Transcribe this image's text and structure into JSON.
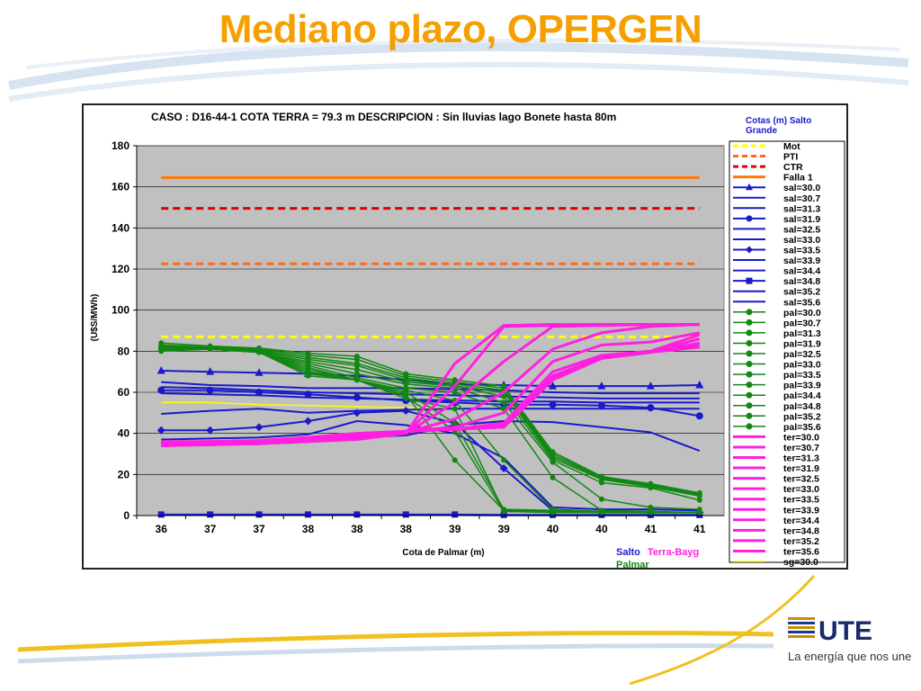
{
  "slide": {
    "title": "Mediano plazo, OPERGEN",
    "logo_text": "UTE",
    "tagline": "La energía que nos une"
  },
  "colors": {
    "title": "#f5a000",
    "plot_bg": "#c0c0c0",
    "salto": "#1a1acc",
    "palmar": "#118811",
    "terra": "#ff20e0",
    "mot": "#ffff00",
    "pti": "#ff6a1a",
    "ctr": "#e00000",
    "falla": "#ff7a00"
  },
  "chart_data": {
    "type": "line",
    "title": "CASO : D16-44-1 COTA TERRA = 79.3 m  DESCRIPCION :    Sin lluvias lago Bonete hasta 80m",
    "xlabel": "Cota de Palmar (m)",
    "ylabel": "(U$S/MWh)",
    "categories": [
      "36",
      "37",
      "37",
      "38",
      "38",
      "38",
      "39",
      "39",
      "40",
      "40",
      "41",
      "41"
    ],
    "ylim": [
      0,
      180
    ],
    "yticks": [
      "0",
      "20",
      "40",
      "60",
      "80",
      "100",
      "120",
      "140",
      "160",
      "180"
    ],
    "grid": true,
    "legend_title": "Cotas (m) Salto Grande",
    "legend_position": "right",
    "bottom_labels": {
      "salto": "Salto",
      "terra": "Terra-Bayg",
      "palmar": "Palmar"
    },
    "reference_lines": [
      {
        "name": "Mot",
        "value": 87,
        "color": "#ffff00",
        "dash": true
      },
      {
        "name": "PTI",
        "value": 122.5,
        "color": "#ff6a1a",
        "dash": true
      },
      {
        "name": "CTR",
        "value": 149.5,
        "color": "#e00000",
        "dash": true
      },
      {
        "name": "Falla 1",
        "value": 164.5,
        "color": "#ff7a00",
        "dash": false
      }
    ],
    "series": [
      {
        "name": "sal=30.0",
        "group": "salto",
        "marker": "triangle",
        "values": [
          70.5,
          70,
          69.5,
          69,
          68,
          66,
          64,
          63.5,
          63,
          63,
          63,
          63.5
        ]
      },
      {
        "name": "sal=30.7",
        "group": "salto",
        "marker": "none",
        "values": [
          65,
          63.5,
          63,
          62,
          62,
          62,
          61.5,
          61,
          60,
          59.5,
          59.5,
          59.5
        ]
      },
      {
        "name": "sal=31.3",
        "group": "salto",
        "marker": "none",
        "values": [
          62.5,
          62,
          61,
          60,
          59.5,
          59,
          58.5,
          58,
          57.5,
          57,
          57,
          57
        ]
      },
      {
        "name": "sal=31.9",
        "group": "salto",
        "marker": "circle",
        "values": [
          61,
          61,
          60,
          59,
          57.5,
          56,
          55,
          54,
          54,
          53.5,
          52.5,
          48.5
        ]
      },
      {
        "name": "sal=32.5",
        "group": "salto",
        "marker": "none",
        "values": [
          59.5,
          59,
          58.5,
          57.5,
          57,
          56.5,
          56,
          55.5,
          55.5,
          55,
          55,
          55
        ]
      },
      {
        "name": "sal=33.0",
        "group": "salto",
        "marker": "none",
        "values": [
          49.5,
          51,
          52,
          50,
          51,
          51.5,
          52,
          52,
          52,
          52,
          52,
          52
        ]
      },
      {
        "name": "sal=33.5",
        "group": "salto",
        "marker": "diamond",
        "values": [
          41.5,
          41.5,
          43,
          46,
          50,
          51,
          45,
          23,
          2.5,
          1.5,
          1.5,
          1.5
        ]
      },
      {
        "name": "sal=33.9",
        "group": "salto",
        "marker": "none",
        "values": [
          37,
          37.5,
          38,
          39.5,
          46,
          44,
          40,
          28,
          4,
          3,
          3,
          2.5
        ]
      },
      {
        "name": "sal=34.4",
        "group": "salto",
        "marker": "none",
        "values": [
          35,
          35.5,
          36,
          37,
          38,
          39,
          44,
          46,
          45.5,
          43,
          40.5,
          31.5
        ]
      },
      {
        "name": "sal=34.8",
        "group": "salto",
        "marker": "square",
        "values": [
          0.5,
          0.5,
          0.5,
          0.5,
          0.5,
          0.5,
          0.5,
          0.3,
          0.3,
          0.3,
          0.3,
          0.3
        ]
      },
      {
        "name": "sal=35.2",
        "group": "salto",
        "marker": "none",
        "values": [
          0.3,
          0.3,
          0.3,
          0.3,
          0.3,
          0.3,
          0.3,
          0.2,
          0.2,
          0.2,
          0.2,
          0.2
        ]
      },
      {
        "name": "sal=35.6",
        "group": "salto",
        "marker": "none",
        "values": [
          0.2,
          0.2,
          0.2,
          0.2,
          0.2,
          0.2,
          0.2,
          0.1,
          0.1,
          0.1,
          0.1,
          0.1
        ]
      },
      {
        "name": "pal=30.0",
        "group": "palmar",
        "marker": "circle",
        "values": [
          84,
          82.5,
          81.5,
          79,
          77.5,
          69,
          66,
          63,
          31,
          19,
          15.5,
          11
        ]
      },
      {
        "name": "pal=30.7",
        "group": "palmar",
        "marker": "circle",
        "values": [
          83,
          82,
          81,
          78,
          76,
          68,
          65,
          62,
          30,
          18.5,
          15,
          10.5
        ]
      },
      {
        "name": "pal=31.3",
        "group": "palmar",
        "marker": "circle",
        "values": [
          82.5,
          82,
          80.5,
          77,
          74,
          67,
          64,
          61,
          29,
          18,
          14.5,
          10
        ]
      },
      {
        "name": "pal=31.9",
        "group": "palmar",
        "marker": "circle",
        "values": [
          82,
          81.5,
          80,
          76,
          73,
          66,
          63,
          60,
          28,
          17.5,
          14,
          9.5
        ]
      },
      {
        "name": "pal=32.5",
        "group": "palmar",
        "marker": "circle",
        "values": [
          82,
          81.5,
          79.5,
          75,
          71,
          65,
          63,
          58,
          27,
          16,
          13.5,
          7.5
        ]
      },
      {
        "name": "pal=33.0",
        "group": "palmar",
        "marker": "circle",
        "values": [
          81.5,
          81.5,
          79.5,
          74,
          69,
          64,
          62,
          55,
          26,
          8,
          4,
          3
        ]
      },
      {
        "name": "pal=33.5",
        "group": "palmar",
        "marker": "circle",
        "values": [
          81.5,
          81,
          79.5,
          73,
          67,
          62,
          60,
          52,
          18.5,
          2.5,
          2,
          1.5
        ]
      },
      {
        "name": "pal=33.9",
        "group": "palmar",
        "marker": "circle",
        "values": [
          81,
          81,
          79.5,
          72,
          66,
          61,
          56,
          27,
          3,
          2,
          1.5,
          1.5
        ]
      },
      {
        "name": "pal=34.4",
        "group": "palmar",
        "marker": "circle",
        "values": [
          81,
          81,
          79.5,
          71,
          66,
          60,
          45,
          3,
          2.5,
          2,
          1.5,
          1.5
        ]
      },
      {
        "name": "pal=34.8",
        "group": "palmar",
        "marker": "circle",
        "values": [
          80.5,
          81,
          79.5,
          70,
          66,
          59,
          27,
          2.5,
          2,
          1.5,
          1.5,
          1.5
        ]
      },
      {
        "name": "pal=35.2",
        "group": "palmar",
        "marker": "circle",
        "values": [
          80.5,
          81,
          79.5,
          69,
          66,
          58,
          41,
          2,
          2,
          1.5,
          1.5,
          1.5
        ]
      },
      {
        "name": "pal=35.6",
        "group": "palmar",
        "marker": "circle",
        "values": [
          80,
          81,
          79.5,
          68,
          66,
          57,
          52,
          2,
          1.5,
          1.5,
          1.5,
          1.5
        ]
      },
      {
        "name": "ter=30.0",
        "group": "terra",
        "marker": "none",
        "values": [
          34,
          34.5,
          35,
          36,
          37,
          40,
          74,
          92.5,
          93,
          93,
          93,
          93
        ]
      },
      {
        "name": "ter=30.7",
        "group": "terra",
        "marker": "none",
        "values": [
          34,
          34.5,
          35,
          36,
          38,
          40,
          63,
          92,
          92.5,
          93,
          93,
          93
        ]
      },
      {
        "name": "ter=31.3",
        "group": "terra",
        "marker": "none",
        "values": [
          34.5,
          34.5,
          35,
          36.5,
          38,
          40,
          55,
          75,
          92,
          92.5,
          93,
          93
        ]
      },
      {
        "name": "ter=31.9",
        "group": "terra",
        "marker": "none",
        "values": [
          34.5,
          35,
          35.5,
          36.5,
          38.5,
          40.5,
          47,
          60,
          81,
          89,
          92,
          93
        ]
      },
      {
        "name": "ter=32.5",
        "group": "terra",
        "marker": "none",
        "values": [
          34.5,
          35,
          35.5,
          37,
          38.5,
          41,
          43,
          50,
          75,
          83,
          84.5,
          89
        ]
      },
      {
        "name": "ter=33.0",
        "group": "terra",
        "marker": "none",
        "values": [
          35,
          35,
          35.5,
          37,
          39,
          41,
          42,
          45,
          70,
          78,
          80,
          88
        ]
      },
      {
        "name": "ter=33.5",
        "group": "terra",
        "marker": "none",
        "values": [
          35,
          35,
          36,
          37,
          39,
          41,
          42,
          44,
          68,
          77,
          79.5,
          86
        ]
      },
      {
        "name": "ter=33.9",
        "group": "terra",
        "marker": "none",
        "values": [
          35,
          35.5,
          36,
          37.5,
          39.5,
          41,
          42,
          43.5,
          67,
          77,
          79.5,
          84
        ]
      },
      {
        "name": "ter=34.4",
        "group": "terra",
        "marker": "none",
        "values": [
          35.5,
          35.5,
          36,
          37.5,
          39.5,
          41,
          42,
          43.5,
          66.5,
          76.5,
          79.5,
          83
        ]
      },
      {
        "name": "ter=34.8",
        "group": "terra",
        "marker": "none",
        "values": [
          35.5,
          35.5,
          36.5,
          38,
          40,
          41,
          42,
          43.5,
          66.5,
          76.5,
          79.5,
          82.5
        ]
      },
      {
        "name": "ter=35.2",
        "group": "terra",
        "marker": "none",
        "values": [
          35.5,
          36,
          36.5,
          38,
          40,
          41,
          42,
          43,
          66,
          76.5,
          79.5,
          82.5
        ]
      },
      {
        "name": "ter=35.6",
        "group": "terra",
        "marker": "none",
        "values": [
          36,
          36,
          36.5,
          38,
          40,
          41,
          42,
          43,
          66,
          76.5,
          79.5,
          82
        ]
      },
      {
        "name": "sg=30.0",
        "group": "sg",
        "marker": "none",
        "values": [
          55,
          55,
          54,
          53.5,
          53,
          52.5,
          52,
          52,
          52,
          52,
          52,
          52
        ]
      }
    ]
  }
}
